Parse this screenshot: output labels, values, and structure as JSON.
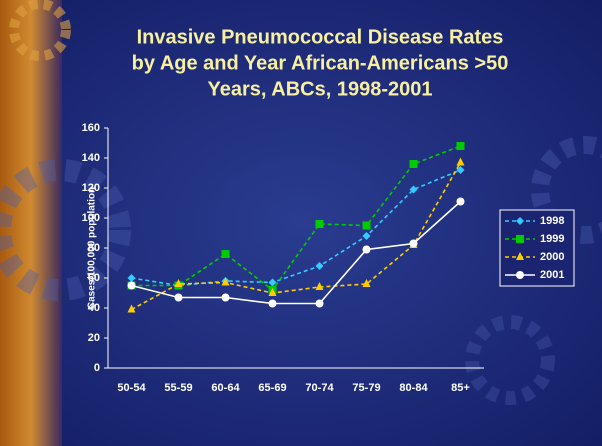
{
  "chart_data": {
    "type": "line",
    "title": [
      "Invasive Pneumococcal Disease Rates",
      "by Age and Year African-Americans >50",
      "Years, ABCs, 1998-2001"
    ],
    "y_label": "Cases/100,000 population",
    "categories": [
      "50-54",
      "55-59",
      "60-64",
      "65-69",
      "70-74",
      "75-79",
      "80-84",
      "85+"
    ],
    "series": [
      {
        "name": "1998",
        "color": "#33ccff",
        "marker": "diamond",
        "dashed": true,
        "values": [
          60,
          55,
          58,
          57,
          68,
          88,
          119,
          132
        ]
      },
      {
        "name": "1999",
        "color": "#00cc00",
        "marker": "square",
        "dashed": true,
        "values": [
          55,
          55,
          76,
          52,
          96,
          95,
          136,
          148
        ]
      },
      {
        "name": "2000",
        "color": "#ffcc00",
        "marker": "triangle",
        "dashed": true,
        "values": [
          39,
          56,
          57,
          50,
          54,
          56,
          82,
          137
        ]
      },
      {
        "name": "2001",
        "color": "#ffffff",
        "marker": "circle",
        "dashed": false,
        "values": [
          55,
          47,
          47,
          43,
          43,
          79,
          83,
          111
        ]
      }
    ],
    "ylim": [
      0,
      160
    ],
    "yticks": [
      0,
      20,
      40,
      60,
      80,
      100,
      120,
      140,
      160
    ],
    "grid": false,
    "legend": "right"
  }
}
